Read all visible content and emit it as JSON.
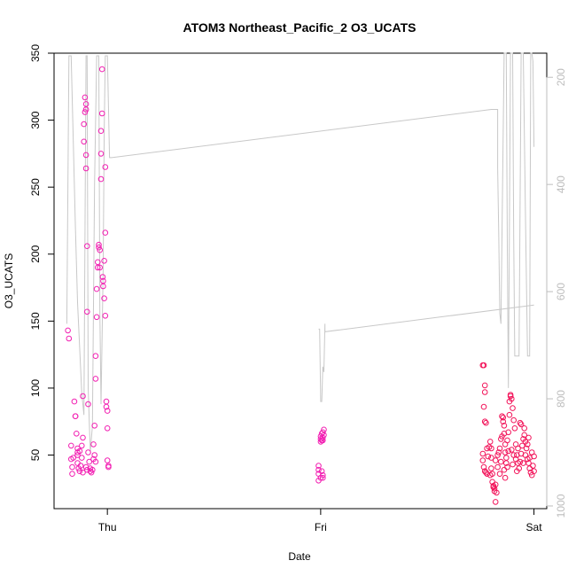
{
  "chart_data": {
    "type": "scatter",
    "title": "ATOM3 Northeast_Pacific_2 O3_UCATS",
    "xlabel": "Date",
    "ylabel": "O3_UCATS",
    "x_ticks": [
      {
        "label": "Thu",
        "value": 1.0
      },
      {
        "label": "Fri",
        "value": 2.0
      },
      {
        "label": "Sat",
        "value": 3.0
      }
    ],
    "xlim": [
      0.75,
      3.06
    ],
    "ylim": [
      10,
      350
    ],
    "y_ticks": [
      50,
      100,
      150,
      200,
      250,
      300,
      350
    ],
    "y2_ticks": [
      200,
      400,
      600,
      800,
      1000
    ],
    "y2lim": [
      1005,
      155
    ],
    "grid": false,
    "colors": {
      "points": "#f21fb2",
      "points_alt": "#f2145a",
      "pressure_line": "#c8c8c8",
      "right_axis": "#bdbdbd"
    },
    "series": [
      {
        "type": "points",
        "points": [
          {
            "x": 0.815,
            "y": 143
          },
          {
            "x": 0.82,
            "y": 137
          },
          {
            "x": 0.83,
            "y": 57
          },
          {
            "x": 0.83,
            "y": 47
          },
          {
            "x": 0.835,
            "y": 41
          },
          {
            "x": 0.835,
            "y": 36
          },
          {
            "x": 0.84,
            "y": 48
          },
          {
            "x": 0.845,
            "y": 90
          },
          {
            "x": 0.85,
            "y": 79
          },
          {
            "x": 0.85,
            "y": 79
          },
          {
            "x": 0.855,
            "y": 66
          },
          {
            "x": 0.86,
            "y": 55
          },
          {
            "x": 0.86,
            "y": 52
          },
          {
            "x": 0.86,
            "y": 44
          },
          {
            "x": 0.865,
            "y": 40
          },
          {
            "x": 0.87,
            "y": 38
          },
          {
            "x": 0.875,
            "y": 42
          },
          {
            "x": 0.88,
            "y": 48
          },
          {
            "x": 0.885,
            "y": 63
          },
          {
            "x": 0.885,
            "y": 94
          },
          {
            "x": 0.89,
            "y": 284
          },
          {
            "x": 0.89,
            "y": 297
          },
          {
            "x": 0.895,
            "y": 306
          },
          {
            "x": 0.895,
            "y": 317
          },
          {
            "x": 0.9,
            "y": 312
          },
          {
            "x": 0.9,
            "y": 308
          },
          {
            "x": 0.9,
            "y": 274
          },
          {
            "x": 0.9,
            "y": 264
          },
          {
            "x": 0.905,
            "y": 157
          },
          {
            "x": 0.905,
            "y": 206
          },
          {
            "x": 0.91,
            "y": 88
          },
          {
            "x": 0.91,
            "y": 52
          },
          {
            "x": 0.915,
            "y": 45
          },
          {
            "x": 0.92,
            "y": 40
          },
          {
            "x": 0.92,
            "y": 38
          },
          {
            "x": 0.925,
            "y": 37
          },
          {
            "x": 0.93,
            "y": 39
          },
          {
            "x": 0.935,
            "y": 47
          },
          {
            "x": 0.935,
            "y": 58
          },
          {
            "x": 0.94,
            "y": 72
          },
          {
            "x": 0.945,
            "y": 107
          },
          {
            "x": 0.945,
            "y": 124
          },
          {
            "x": 0.95,
            "y": 153
          },
          {
            "x": 0.95,
            "y": 174
          },
          {
            "x": 0.955,
            "y": 190
          },
          {
            "x": 0.955,
            "y": 194
          },
          {
            "x": 0.96,
            "y": 205
          },
          {
            "x": 0.96,
            "y": 207
          },
          {
            "x": 0.965,
            "y": 190
          },
          {
            "x": 0.965,
            "y": 203
          },
          {
            "x": 0.97,
            "y": 256
          },
          {
            "x": 0.97,
            "y": 275
          },
          {
            "x": 0.97,
            "y": 292
          },
          {
            "x": 0.975,
            "y": 305
          },
          {
            "x": 0.975,
            "y": 338
          },
          {
            "x": 0.978,
            "y": 183
          },
          {
            "x": 0.98,
            "y": 180
          },
          {
            "x": 0.98,
            "y": 176
          },
          {
            "x": 0.985,
            "y": 167
          },
          {
            "x": 0.985,
            "y": 195
          },
          {
            "x": 0.99,
            "y": 216
          },
          {
            "x": 0.99,
            "y": 265
          },
          {
            "x": 0.99,
            "y": 154
          },
          {
            "x": 0.995,
            "y": 90
          },
          {
            "x": 0.995,
            "y": 86
          },
          {
            "x": 1.0,
            "y": 83
          },
          {
            "x": 1.0,
            "y": 70
          },
          {
            "x": 1.0,
            "y": 46
          },
          {
            "x": 1.005,
            "y": 41
          },
          {
            "x": 1.005,
            "y": 42
          },
          {
            "x": 0.86,
            "y": 50
          },
          {
            "x": 0.87,
            "y": 53
          },
          {
            "x": 0.885,
            "y": 37
          },
          {
            "x": 0.905,
            "y": 39
          },
          {
            "x": 0.94,
            "y": 50
          },
          {
            "x": 0.945,
            "y": 45
          },
          {
            "x": 0.88,
            "y": 57
          },
          {
            "x": 0.9,
            "y": 41
          },
          {
            "x": 1.99,
            "y": 42
          },
          {
            "x": 1.99,
            "y": 39
          },
          {
            "x": 1.99,
            "y": 36
          },
          {
            "x": 1.99,
            "y": 31
          },
          {
            "x": 2.0,
            "y": 33
          },
          {
            "x": 2.005,
            "y": 38
          },
          {
            "x": 2.01,
            "y": 35
          },
          {
            "x": 2.01,
            "y": 33
          },
          {
            "x": 2.0,
            "y": 64
          },
          {
            "x": 2.0,
            "y": 62
          },
          {
            "x": 2.005,
            "y": 66
          },
          {
            "x": 2.005,
            "y": 61
          },
          {
            "x": 2.01,
            "y": 63
          },
          {
            "x": 2.01,
            "y": 67
          },
          {
            "x": 2.015,
            "y": 69
          },
          {
            "x": 2.015,
            "y": 65
          },
          {
            "x": 2.0,
            "y": 60
          },
          {
            "x": 2.01,
            "y": 61
          },
          {
            "x": 2.76,
            "y": 117
          },
          {
            "x": 2.765,
            "y": 117
          },
          {
            "x": 2.77,
            "y": 102
          },
          {
            "x": 2.77,
            "y": 97
          },
          {
            "x": 2.765,
            "y": 86
          },
          {
            "x": 2.77,
            "y": 75
          },
          {
            "x": 2.775,
            "y": 74
          },
          {
            "x": 2.76,
            "y": 51
          },
          {
            "x": 2.76,
            "y": 46
          },
          {
            "x": 2.765,
            "y": 41
          },
          {
            "x": 2.77,
            "y": 38
          },
          {
            "x": 2.775,
            "y": 37
          },
          {
            "x": 2.78,
            "y": 36
          },
          {
            "x": 2.785,
            "y": 49
          },
          {
            "x": 2.79,
            "y": 56
          },
          {
            "x": 2.795,
            "y": 60
          },
          {
            "x": 2.8,
            "y": 55
          },
          {
            "x": 2.8,
            "y": 48
          },
          {
            "x": 2.8,
            "y": 40
          },
          {
            "x": 2.805,
            "y": 30
          },
          {
            "x": 2.81,
            "y": 27
          },
          {
            "x": 2.81,
            "y": 26
          },
          {
            "x": 2.815,
            "y": 25
          },
          {
            "x": 2.815,
            "y": 23
          },
          {
            "x": 2.82,
            "y": 28
          },
          {
            "x": 2.82,
            "y": 15
          },
          {
            "x": 2.825,
            "y": 22
          },
          {
            "x": 2.83,
            "y": 50
          },
          {
            "x": 2.835,
            "y": 52
          },
          {
            "x": 2.84,
            "y": 55
          },
          {
            "x": 2.845,
            "y": 45
          },
          {
            "x": 2.85,
            "y": 64
          },
          {
            "x": 2.85,
            "y": 79
          },
          {
            "x": 2.855,
            "y": 78
          },
          {
            "x": 2.855,
            "y": 75
          },
          {
            "x": 2.86,
            "y": 72
          },
          {
            "x": 2.86,
            "y": 66
          },
          {
            "x": 2.865,
            "y": 58
          },
          {
            "x": 2.865,
            "y": 52
          },
          {
            "x": 2.87,
            "y": 48
          },
          {
            "x": 2.87,
            "y": 44
          },
          {
            "x": 2.875,
            "y": 41
          },
          {
            "x": 2.88,
            "y": 53
          },
          {
            "x": 2.88,
            "y": 67
          },
          {
            "x": 2.885,
            "y": 80
          },
          {
            "x": 2.885,
            "y": 90
          },
          {
            "x": 2.89,
            "y": 94
          },
          {
            "x": 2.89,
            "y": 95
          },
          {
            "x": 2.895,
            "y": 92
          },
          {
            "x": 2.9,
            "y": 85
          },
          {
            "x": 2.905,
            "y": 76
          },
          {
            "x": 2.91,
            "y": 70
          },
          {
            "x": 2.915,
            "y": 58
          },
          {
            "x": 2.92,
            "y": 50
          },
          {
            "x": 2.925,
            "y": 44
          },
          {
            "x": 2.93,
            "y": 40
          },
          {
            "x": 2.935,
            "y": 45
          },
          {
            "x": 2.94,
            "y": 51
          },
          {
            "x": 2.945,
            "y": 57
          },
          {
            "x": 2.95,
            "y": 62
          },
          {
            "x": 2.955,
            "y": 65
          },
          {
            "x": 2.96,
            "y": 60
          },
          {
            "x": 2.965,
            "y": 55
          },
          {
            "x": 2.97,
            "y": 47
          },
          {
            "x": 2.975,
            "y": 44
          },
          {
            "x": 2.98,
            "y": 40
          },
          {
            "x": 2.985,
            "y": 37
          },
          {
            "x": 2.99,
            "y": 35
          },
          {
            "x": 2.995,
            "y": 42
          },
          {
            "x": 3.0,
            "y": 49
          },
          {
            "x": 2.795,
            "y": 35
          },
          {
            "x": 2.805,
            "y": 36
          },
          {
            "x": 2.83,
            "y": 41
          },
          {
            "x": 2.84,
            "y": 36
          },
          {
            "x": 2.86,
            "y": 39
          },
          {
            "x": 2.875,
            "y": 61
          },
          {
            "x": 2.895,
            "y": 54
          },
          {
            "x": 2.905,
            "y": 50
          },
          {
            "x": 2.915,
            "y": 47
          },
          {
            "x": 2.925,
            "y": 55
          },
          {
            "x": 2.935,
            "y": 74
          },
          {
            "x": 2.94,
            "y": 73
          },
          {
            "x": 2.95,
            "y": 44
          },
          {
            "x": 2.96,
            "y": 50
          },
          {
            "x": 2.97,
            "y": 58
          },
          {
            "x": 2.98,
            "y": 48
          },
          {
            "x": 2.99,
            "y": 52
          },
          {
            "x": 3.0,
            "y": 38
          },
          {
            "x": 2.78,
            "y": 55
          },
          {
            "x": 2.82,
            "y": 46
          },
          {
            "x": 2.845,
            "y": 62
          },
          {
            "x": 2.865,
            "y": 33
          },
          {
            "x": 2.9,
            "y": 43
          },
          {
            "x": 2.92,
            "y": 38
          },
          {
            "x": 2.955,
            "y": 70
          },
          {
            "x": 2.975,
            "y": 63
          }
        ]
      },
      {
        "type": "line",
        "axis": "right",
        "points": [
          {
            "x": 0.81,
            "y": 660
          },
          {
            "x": 0.82,
            "y": 160
          },
          {
            "x": 0.83,
            "y": 160
          },
          {
            "x": 0.85,
            "y": 480
          },
          {
            "x": 0.86,
            "y": 620
          },
          {
            "x": 0.88,
            "y": 790
          },
          {
            "x": 0.89,
            "y": 830
          },
          {
            "x": 0.9,
            "y": 160
          },
          {
            "x": 0.905,
            "y": 160
          },
          {
            "x": 0.91,
            "y": 780
          },
          {
            "x": 0.92,
            "y": 900
          },
          {
            "x": 0.93,
            "y": 850
          },
          {
            "x": 0.94,
            "y": 400
          },
          {
            "x": 0.95,
            "y": 160
          },
          {
            "x": 0.96,
            "y": 160
          },
          {
            "x": 0.965,
            "y": 640
          },
          {
            "x": 0.97,
            "y": 810
          },
          {
            "x": 0.98,
            "y": 560
          },
          {
            "x": 0.985,
            "y": 300
          },
          {
            "x": 0.99,
            "y": 160
          },
          {
            "x": 1.0,
            "y": 160
          },
          {
            "x": 1.01,
            "y": 350
          },
          {
            "x": 1.02,
            "y": 350
          },
          {
            "x": 2.8,
            "y": 260
          },
          {
            "x": 2.83,
            "y": 260
          },
          {
            "x": 2.83,
            "y": 370
          },
          {
            "x": 2.835,
            "y": 490
          },
          {
            "x": 2.84,
            "y": 640
          },
          {
            "x": 2.845,
            "y": 660
          },
          {
            "x": 2.86,
            "y": 155
          },
          {
            "x": 2.87,
            "y": 155
          },
          {
            "x": 2.875,
            "y": 520
          },
          {
            "x": 2.88,
            "y": 780
          },
          {
            "x": 2.89,
            "y": 155
          },
          {
            "x": 2.9,
            "y": 155
          },
          {
            "x": 2.905,
            "y": 500
          },
          {
            "x": 2.91,
            "y": 720
          },
          {
            "x": 2.93,
            "y": 720
          },
          {
            "x": 2.94,
            "y": 155
          },
          {
            "x": 2.95,
            "y": 155
          },
          {
            "x": 2.96,
            "y": 450
          },
          {
            "x": 2.97,
            "y": 720
          },
          {
            "x": 2.98,
            "y": 720
          },
          {
            "x": 2.985,
            "y": 155
          },
          {
            "x": 2.99,
            "y": 155
          },
          {
            "x": 2.995,
            "y": 170
          },
          {
            "x": 3.0,
            "y": 330
          }
        ]
      },
      {
        "type": "line",
        "axis": "right",
        "points": [
          {
            "x": 1.99,
            "y": 670
          },
          {
            "x": 1.995,
            "y": 670
          },
          {
            "x": 2.0,
            "y": 805
          },
          {
            "x": 2.005,
            "y": 805
          },
          {
            "x": 2.01,
            "y": 740
          },
          {
            "x": 2.015,
            "y": 750
          },
          {
            "x": 2.02,
            "y": 660
          },
          {
            "x": 2.02,
            "y": 675
          },
          {
            "x": 3.0,
            "y": 625
          }
        ]
      }
    ]
  }
}
